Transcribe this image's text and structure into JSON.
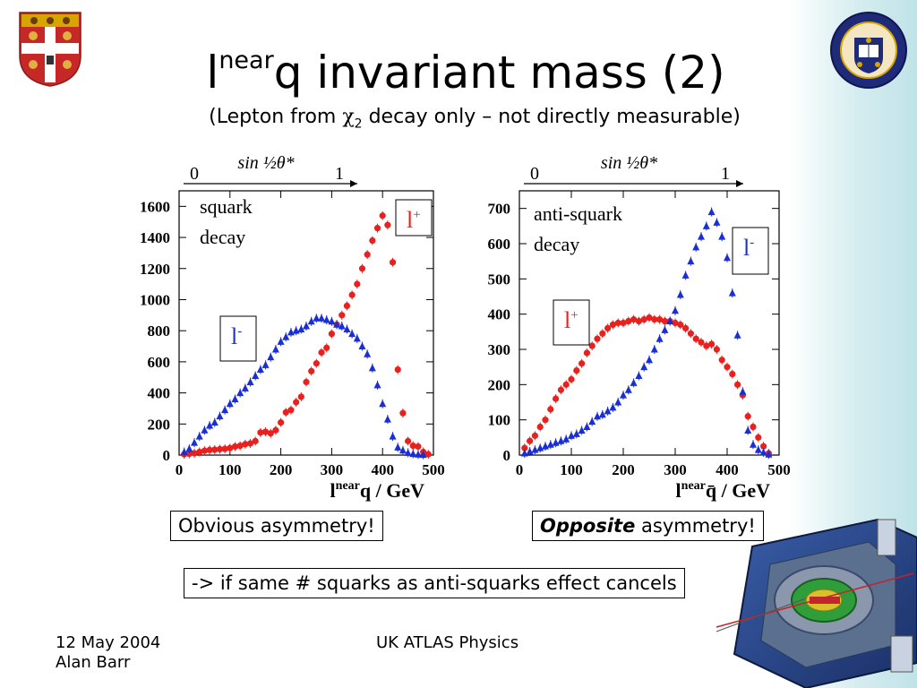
{
  "slide": {
    "title_main": "l",
    "title_sup": "near",
    "title_rest": "q invariant mass (2)",
    "subtitle_pre": "(Lepton from ",
    "subtitle_chi": "χ",
    "subtitle_sub": "2",
    "subtitle_post": " decay only – not directly measurable)",
    "note_left": "Obvious asymmetry!",
    "note_right_em": "Opposite",
    "note_right_rest": " asymmetry!",
    "conclusion": "-> if same # squarks as anti-squarks effect cancels",
    "footer_date": "12 May 2004",
    "footer_author": "Alan Barr",
    "footer_center": "UK ATLAS Physics"
  },
  "colors": {
    "plus": "#e8201e",
    "minus": "#1a2ed6",
    "accent_bg": "#bfe3e8"
  },
  "chart_data": [
    {
      "type": "scatter",
      "annotation": "squark decay",
      "xlabel_main": "l",
      "xlabel_sup": "near",
      "xlabel_rest": "q / GeV",
      "top_axis_label": "sin ½θ*",
      "top_axis_ticks": [
        "0",
        "1"
      ],
      "xlim": [
        0,
        500
      ],
      "ylim": [
        0,
        1700
      ],
      "xticks": [
        0,
        100,
        200,
        300,
        400,
        500
      ],
      "yticks": [
        0,
        200,
        400,
        600,
        800,
        1000,
        1200,
        1400,
        1600
      ],
      "series": [
        {
          "name": "l+",
          "color": "#e8201e",
          "marker": "circle",
          "x": [
            10,
            20,
            30,
            40,
            50,
            60,
            70,
            80,
            90,
            100,
            110,
            120,
            130,
            140,
            150,
            160,
            170,
            180,
            190,
            200,
            210,
            220,
            230,
            240,
            250,
            260,
            270,
            280,
            290,
            300,
            310,
            320,
            330,
            340,
            350,
            360,
            370,
            380,
            390,
            400,
            410,
            420,
            430,
            440,
            450,
            460,
            470,
            480,
            490
          ],
          "y": [
            5,
            8,
            12,
            20,
            28,
            33,
            35,
            38,
            40,
            45,
            55,
            60,
            70,
            75,
            90,
            145,
            150,
            140,
            160,
            210,
            275,
            290,
            340,
            375,
            470,
            540,
            590,
            660,
            690,
            780,
            840,
            900,
            960,
            1030,
            1100,
            1200,
            1290,
            1380,
            1460,
            1540,
            1480,
            1240,
            550,
            270,
            90,
            60,
            55,
            20,
            5
          ]
        },
        {
          "name": "l-",
          "color": "#1a2ed6",
          "marker": "triangle",
          "x": [
            10,
            20,
            30,
            40,
            50,
            60,
            70,
            80,
            90,
            100,
            110,
            120,
            130,
            140,
            150,
            160,
            170,
            180,
            190,
            200,
            210,
            220,
            230,
            240,
            250,
            260,
            270,
            280,
            290,
            300,
            310,
            320,
            330,
            340,
            350,
            360,
            370,
            380,
            390,
            400,
            410,
            420,
            430,
            440,
            450,
            460,
            470,
            480
          ],
          "y": [
            20,
            40,
            80,
            120,
            160,
            190,
            210,
            250,
            290,
            330,
            360,
            400,
            430,
            470,
            510,
            550,
            580,
            630,
            680,
            730,
            760,
            790,
            800,
            810,
            830,
            860,
            880,
            880,
            870,
            860,
            840,
            830,
            810,
            780,
            750,
            700,
            650,
            560,
            450,
            330,
            230,
            120,
            50,
            30,
            15,
            8,
            4,
            2
          ]
        }
      ]
    },
    {
      "type": "scatter",
      "annotation": "anti-squark decay",
      "xlabel_main": "l",
      "xlabel_sup": "near",
      "xlabel_rest": "q̄ / GeV",
      "top_axis_label": "sin ½θ*",
      "top_axis_ticks": [
        "0",
        "1"
      ],
      "xlim": [
        0,
        500
      ],
      "ylim": [
        0,
        750
      ],
      "xticks": [
        0,
        100,
        200,
        300,
        400,
        500
      ],
      "yticks": [
        0,
        100,
        200,
        300,
        400,
        500,
        600,
        700
      ],
      "series": [
        {
          "name": "l+",
          "color": "#e8201e",
          "marker": "circle",
          "x": [
            10,
            20,
            30,
            40,
            50,
            60,
            70,
            80,
            90,
            100,
            110,
            120,
            130,
            140,
            150,
            160,
            170,
            180,
            190,
            200,
            210,
            220,
            230,
            240,
            250,
            260,
            270,
            280,
            290,
            300,
            310,
            320,
            330,
            340,
            350,
            360,
            370,
            380,
            390,
            400,
            410,
            420,
            430,
            440,
            450,
            460,
            470,
            480
          ],
          "y": [
            20,
            40,
            55,
            80,
            100,
            130,
            160,
            185,
            200,
            215,
            240,
            260,
            290,
            310,
            330,
            345,
            360,
            370,
            375,
            375,
            380,
            385,
            380,
            385,
            390,
            385,
            385,
            380,
            380,
            375,
            370,
            360,
            345,
            330,
            320,
            310,
            315,
            300,
            270,
            250,
            230,
            200,
            170,
            110,
            80,
            50,
            25,
            5
          ]
        },
        {
          "name": "l-",
          "color": "#1a2ed6",
          "marker": "triangle",
          "x": [
            10,
            20,
            30,
            40,
            50,
            60,
            70,
            80,
            90,
            100,
            110,
            120,
            130,
            140,
            150,
            160,
            170,
            180,
            190,
            200,
            210,
            220,
            230,
            240,
            250,
            260,
            270,
            280,
            290,
            300,
            310,
            320,
            330,
            340,
            350,
            360,
            370,
            380,
            390,
            400,
            410,
            420,
            430,
            440,
            450,
            460,
            470,
            480
          ],
          "y": [
            5,
            10,
            15,
            20,
            25,
            30,
            35,
            40,
            45,
            55,
            60,
            70,
            80,
            95,
            110,
            115,
            125,
            135,
            150,
            170,
            185,
            205,
            225,
            250,
            270,
            300,
            330,
            355,
            380,
            410,
            455,
            510,
            550,
            590,
            620,
            650,
            690,
            660,
            620,
            560,
            460,
            340,
            180,
            70,
            30,
            15,
            8,
            2
          ]
        }
      ]
    }
  ]
}
